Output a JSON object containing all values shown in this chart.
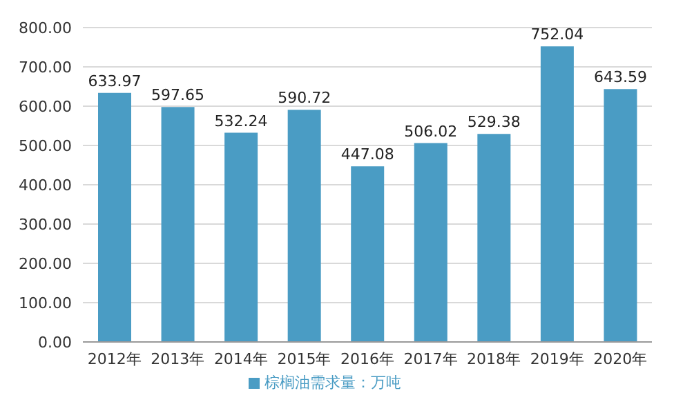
{
  "chart_data": {
    "type": "bar",
    "categories": [
      "2012年",
      "2013年",
      "2014年",
      "2015年",
      "2016年",
      "2017年",
      "2018年",
      "2019年",
      "2020年"
    ],
    "series": [
      {
        "name": "棕榈油需求量：万吨",
        "color": "#4a9cc4",
        "values": [
          633.97,
          597.65,
          532.24,
          590.72,
          447.08,
          506.02,
          529.38,
          752.04,
          643.59
        ]
      }
    ],
    "ylim": [
      0,
      800
    ],
    "yticks": [
      {
        "value": 0,
        "label": "0.00"
      },
      {
        "value": 100,
        "label": "100.00"
      },
      {
        "value": 200,
        "label": "200.00"
      },
      {
        "value": 300,
        "label": "300.00"
      },
      {
        "value": 400,
        "label": "400.00"
      },
      {
        "value": 500,
        "label": "500.00"
      },
      {
        "value": 600,
        "label": "600.00"
      },
      {
        "value": 700,
        "label": "700.00"
      },
      {
        "value": 800,
        "label": "800.00"
      }
    ],
    "grid": "y",
    "legend": "bottom",
    "data_labels": true
  }
}
